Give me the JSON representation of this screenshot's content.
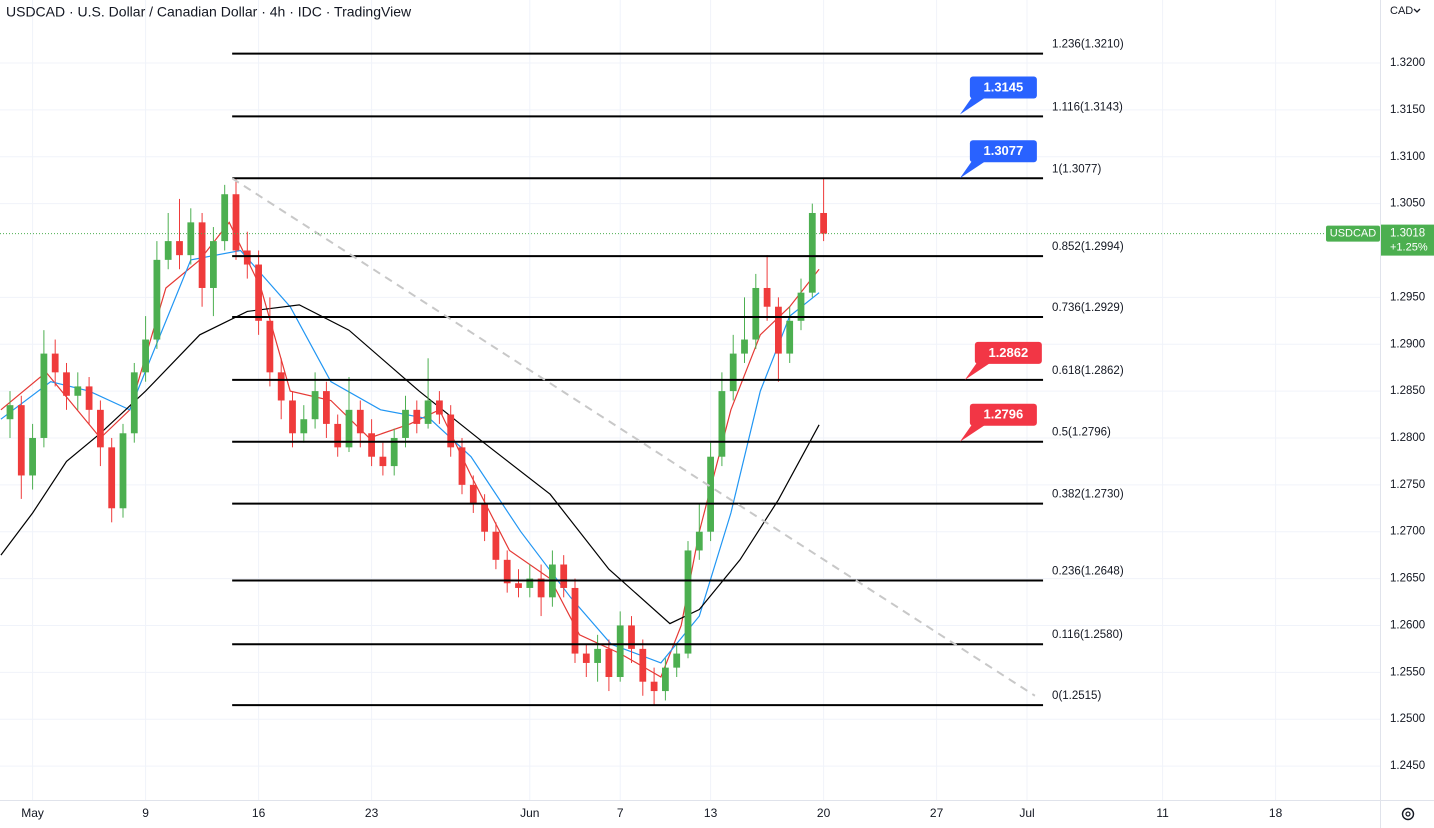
{
  "chart_data": {
    "type": "candlestick",
    "title": "USDCAD · U.S. Dollar / Canadian Dollar · 4h · IDC · TradingView",
    "currency": "CAD",
    "x": [
      -1,
      -0.5,
      0,
      0.5,
      1,
      1.5,
      2,
      2.5,
      3,
      3.5,
      4,
      4.5,
      5,
      5.5,
      6,
      6.5,
      7,
      7.5,
      8,
      8.5,
      9,
      9.5,
      10,
      10.5,
      11,
      11.5,
      12,
      12.5,
      13,
      13.5,
      14,
      14.5,
      15,
      15.5,
      16,
      16.5,
      17,
      17.5,
      18,
      18.5,
      19,
      19.5,
      20,
      20.5,
      21,
      21.5,
      22,
      22.5,
      23,
      23.5,
      24,
      24.5,
      25,
      25.5,
      26,
      26.5,
      27,
      27.5,
      28,
      28.5,
      29,
      29.5,
      30,
      30.5,
      31,
      31.5,
      32,
      32.5,
      33,
      33.5,
      34,
      34.5,
      35
    ],
    "open": [
      1.282,
      1.2835,
      1.276,
      1.28,
      1.289,
      1.287,
      1.2845,
      1.2855,
      1.283,
      1.279,
      1.2725,
      1.2805,
      1.287,
      1.2905,
      1.299,
      1.301,
      1.2995,
      1.303,
      1.296,
      1.301,
      1.306,
      1.3,
      1.2985,
      1.2925,
      1.287,
      1.284,
      1.2805,
      1.282,
      1.285,
      1.2815,
      1.279,
      1.283,
      1.2805,
      1.278,
      1.277,
      1.28,
      1.283,
      1.2815,
      1.284,
      1.2825,
      1.279,
      1.275,
      1.273,
      1.27,
      1.267,
      1.2645,
      1.264,
      1.265,
      1.263,
      1.2665,
      1.264,
      1.257,
      1.256,
      1.2575,
      1.2545,
      1.26,
      1.2575,
      1.254,
      1.253,
      1.2555,
      1.257,
      1.268,
      1.27,
      1.278,
      1.285,
      1.289,
      1.2905,
      1.296,
      1.294,
      1.289,
      1.2925,
      1.2955,
      1.304
    ],
    "high": [
      1.285,
      1.2845,
      1.2815,
      1.2915,
      1.2905,
      1.288,
      1.287,
      1.2865,
      1.284,
      1.28,
      1.2815,
      1.288,
      1.293,
      1.301,
      1.304,
      1.3055,
      1.3045,
      1.304,
      1.3025,
      1.307,
      1.3077,
      1.302,
      1.3,
      1.295,
      1.2885,
      1.285,
      1.2835,
      1.287,
      1.286,
      1.2825,
      1.2865,
      1.284,
      1.282,
      1.2795,
      1.281,
      1.2845,
      1.284,
      1.2885,
      1.285,
      1.2835,
      1.28,
      1.276,
      1.274,
      1.271,
      1.268,
      1.266,
      1.2665,
      1.2665,
      1.268,
      1.2675,
      1.265,
      1.258,
      1.259,
      1.2585,
      1.2615,
      1.261,
      1.2585,
      1.2555,
      1.2565,
      1.258,
      1.269,
      1.273,
      1.2795,
      1.287,
      1.291,
      1.295,
      1.2975,
      1.2995,
      1.295,
      1.294,
      1.297,
      1.305,
      1.3077
    ],
    "low": [
      1.28,
      1.2735,
      1.2745,
      1.279,
      1.2855,
      1.283,
      1.283,
      1.2815,
      1.277,
      1.271,
      1.2715,
      1.2795,
      1.286,
      1.2895,
      1.298,
      1.298,
      1.2985,
      1.294,
      1.293,
      1.3,
      1.299,
      1.297,
      1.291,
      1.2855,
      1.282,
      1.279,
      1.2795,
      1.281,
      1.28,
      1.278,
      1.2785,
      1.279,
      1.277,
      1.276,
      1.276,
      1.279,
      1.2805,
      1.281,
      1.2815,
      1.278,
      1.274,
      1.272,
      1.269,
      1.266,
      1.2635,
      1.263,
      1.263,
      1.261,
      1.262,
      1.263,
      1.256,
      1.2545,
      1.254,
      1.253,
      1.254,
      1.256,
      1.2525,
      1.2515,
      1.252,
      1.2545,
      1.2565,
      1.267,
      1.269,
      1.277,
      1.284,
      1.288,
      1.2895,
      1.2925,
      1.286,
      1.288,
      1.2915,
      1.295,
      1.301
    ],
    "close": [
      1.2835,
      1.276,
      1.28,
      1.289,
      1.287,
      1.2845,
      1.2855,
      1.283,
      1.279,
      1.2725,
      1.2805,
      1.287,
      1.2905,
      1.299,
      1.301,
      1.2995,
      1.303,
      1.296,
      1.301,
      1.306,
      1.3,
      1.2985,
      1.2925,
      1.287,
      1.284,
      1.2805,
      1.282,
      1.285,
      1.2815,
      1.279,
      1.283,
      1.2805,
      1.278,
      1.277,
      1.28,
      1.283,
      1.2815,
      1.284,
      1.2825,
      1.279,
      1.275,
      1.273,
      1.27,
      1.267,
      1.2645,
      1.264,
      1.265,
      1.263,
      1.2665,
      1.264,
      1.257,
      1.256,
      1.2575,
      1.2545,
      1.26,
      1.2575,
      1.254,
      1.253,
      1.2555,
      1.257,
      1.268,
      1.27,
      1.278,
      1.285,
      1.289,
      1.2905,
      1.296,
      1.294,
      1.289,
      1.2925,
      1.2955,
      1.304,
      1.3018
    ],
    "up_color": "#4caf50",
    "down_color": "#ef3b3b",
    "series": [
      {
        "color": "#e53935",
        "x": [
          -1.4,
          0.6,
          3,
          4.3,
          5.9,
          7.4,
          8.7,
          10.1,
          11.4,
          13.2,
          14.9,
          16.7,
          18,
          19.4,
          21.1,
          22.9,
          24.2,
          26,
          27.8,
          28.7,
          29.5,
          30.9,
          32.2,
          33.5,
          34.8
        ],
        "values": [
          1.283,
          1.287,
          1.28,
          1.283,
          1.296,
          1.299,
          1.303,
          1.296,
          1.285,
          1.284,
          1.28,
          1.2815,
          1.283,
          1.276,
          1.268,
          1.265,
          1.259,
          1.257,
          1.2545,
          1.26,
          1.27,
          1.283,
          1.291,
          1.294,
          1.298
        ]
      },
      {
        "color": "#2196f3",
        "x": [
          -1.4,
          0.8,
          2.5,
          4.3,
          7,
          9.2,
          11.4,
          13.2,
          15.4,
          17.6,
          19.4,
          21.6,
          23.8,
          25.6,
          27.8,
          29.5,
          30.9,
          32.2,
          33.5,
          34.8
        ],
        "values": [
          1.282,
          1.286,
          1.285,
          1.283,
          1.299,
          1.3,
          1.294,
          1.286,
          1.283,
          1.282,
          1.278,
          1.27,
          1.263,
          1.258,
          1.256,
          1.261,
          1.272,
          1.285,
          1.293,
          1.2955
        ]
      },
      {
        "color": "#000000",
        "x": [
          -1.4,
          0,
          1.5,
          3,
          5,
          7.4,
          9.5,
          11.8,
          14,
          17.1,
          19.8,
          22.9,
          25.5,
          28.2,
          29.5,
          31.3,
          33,
          34.8
        ],
        "values": [
          1.2675,
          1.272,
          1.2775,
          1.2805,
          1.285,
          1.291,
          1.2935,
          1.2942,
          1.2915,
          1.285,
          1.2798,
          1.274,
          1.266,
          1.2602,
          1.2617,
          1.267,
          1.2734,
          1.2814
        ]
      }
    ],
    "fib_x": [
      8.83,
      44.71
    ],
    "fib_levels": [
      {
        "value": 1.321,
        "label": "1.236(1.3210)"
      },
      {
        "value": 1.3143,
        "label": "1.116(1.3143)"
      },
      {
        "value": 1.3077,
        "label": "1(1.3077)"
      },
      {
        "value": 1.2994,
        "label": "0.852(1.2994)"
      },
      {
        "value": 1.2929,
        "label": "0.736(1.2929)"
      },
      {
        "value": 1.2862,
        "label": "0.618(1.2862)"
      },
      {
        "value": 1.2796,
        "label": "0.5(1.2796)"
      },
      {
        "value": 1.273,
        "label": "0.382(1.2730)"
      },
      {
        "value": 1.2648,
        "label": "0.236(1.2648)"
      },
      {
        "value": 1.258,
        "label": "0.116(1.2580)"
      },
      {
        "value": 1.2515,
        "label": "0(1.2515)"
      }
    ],
    "trendline": {
      "x": [
        8.83,
        44.35
      ],
      "values": [
        1.3077,
        1.2525
      ]
    },
    "callouts": [
      {
        "x": 41.03,
        "value": 1.3145,
        "color": "#2962ff"
      },
      {
        "x": 41.03,
        "value": 1.3077,
        "color": "#2962ff"
      },
      {
        "x": 41.25,
        "value": 1.2862,
        "color": "#f23645"
      },
      {
        "x": 41.03,
        "value": 1.2796,
        "color": "#f23645"
      }
    ],
    "price_label": {
      "symbol": "USDCAD",
      "value": 1.3018,
      "change": "+1.25%",
      "color": "#4caf50"
    },
    "xlim": [
      -1.442,
      59.619
    ],
    "ylim": [
      1.24138,
      1.32672
    ],
    "grid": true,
    "xticks": [
      {
        "value": 0,
        "label": "May"
      },
      {
        "value": 5,
        "label": "9"
      },
      {
        "value": 10,
        "label": "16"
      },
      {
        "value": 15,
        "label": "23"
      },
      {
        "value": 22,
        "label": "Jun"
      },
      {
        "value": 26,
        "label": "7"
      },
      {
        "value": 30,
        "label": "13"
      },
      {
        "value": 35,
        "label": "20"
      },
      {
        "value": 40,
        "label": "27"
      },
      {
        "value": 44,
        "label": "Jul"
      },
      {
        "value": 50,
        "label": "11"
      },
      {
        "value": 55,
        "label": "18"
      }
    ],
    "yticks": [
      {
        "value": 1.32,
        "label": "1.3200"
      },
      {
        "value": 1.315,
        "label": "1.3150"
      },
      {
        "value": 1.31,
        "label": "1.3100"
      },
      {
        "value": 1.305,
        "label": "1.3050"
      },
      {
        "value": 1.295,
        "label": "1.2950"
      },
      {
        "value": 1.29,
        "label": "1.2900"
      },
      {
        "value": 1.285,
        "label": "1.2850"
      },
      {
        "value": 1.28,
        "label": "1.2800"
      },
      {
        "value": 1.275,
        "label": "1.2750"
      },
      {
        "value": 1.27,
        "label": "1.2700"
      },
      {
        "value": 1.265,
        "label": "1.2650"
      },
      {
        "value": 1.26,
        "label": "1.2600"
      },
      {
        "value": 1.255,
        "label": "1.2550"
      },
      {
        "value": 1.25,
        "label": "1.2500"
      },
      {
        "value": 1.245,
        "label": "1.2450"
      }
    ]
  }
}
